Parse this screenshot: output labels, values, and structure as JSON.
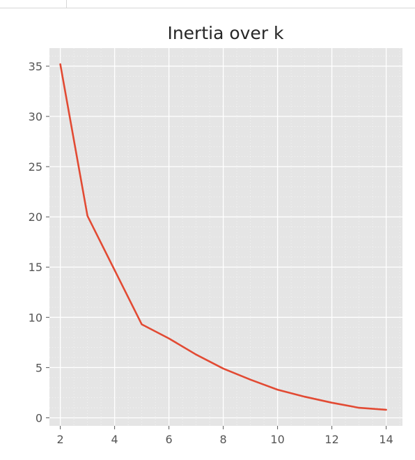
{
  "chart_data": {
    "type": "line",
    "title": "Inertia over k",
    "xlabel": "",
    "ylabel": "",
    "x": [
      2,
      3,
      4,
      5,
      6,
      7,
      8,
      9,
      10,
      11,
      12,
      13,
      14
    ],
    "series": [
      {
        "values": [
          35.2,
          20.1,
          14.7,
          9.3,
          7.9,
          6.3,
          4.9,
          3.8,
          2.8,
          2.1,
          1.5,
          1.0,
          0.8
        ]
      }
    ],
    "xlim": [
      1.6,
      14.6
    ],
    "ylim": [
      -0.8,
      36.8
    ],
    "xticks": [
      2,
      4,
      6,
      8,
      10,
      12,
      14
    ],
    "yticks": [
      0,
      5,
      10,
      15,
      20,
      25,
      30,
      35
    ],
    "xtick_labels": [
      "2",
      "4",
      "6",
      "8",
      "10",
      "12",
      "14"
    ],
    "ytick_labels": [
      "0",
      "5",
      "10",
      "15",
      "20",
      "25",
      "30",
      "35"
    ],
    "grid": true,
    "style": "ggplot",
    "colors": {
      "background": "#e5e5e5",
      "grid": "#ffffff",
      "line": "#e24a33",
      "tick_text": "#555555",
      "title_text": "#262626"
    }
  }
}
